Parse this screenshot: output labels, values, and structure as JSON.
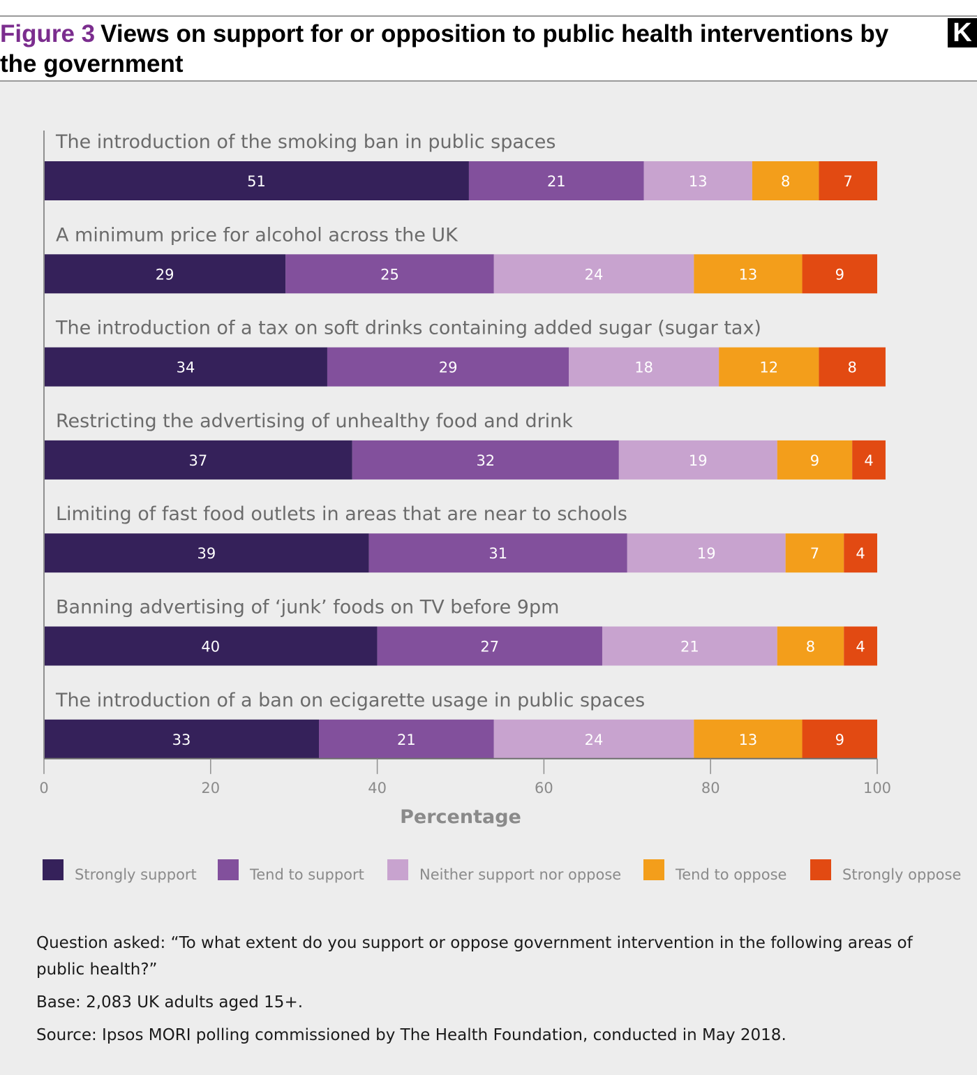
{
  "header": {
    "figure_label": "Figure 3",
    "title": "Views on support for or opposition to public health interventions by the government",
    "logo_text": "K"
  },
  "chart_data": {
    "type": "bar",
    "orientation": "horizontal",
    "stacked": true,
    "categories": [
      "The introduction of the smoking ban in public spaces",
      "A minimum price for alcohol across the UK",
      "The introduction of a tax on soft drinks containing added sugar (sugar tax)",
      "Restricting the advertising of unhealthy food and drink",
      "Limiting of fast food outlets in areas that are near to schools",
      "Banning advertising of ‘junk’ foods on TV before 9pm",
      "The introduction of a ban on ecigarette usage in public spaces"
    ],
    "series": [
      {
        "name": "Strongly support",
        "color": "#35215a",
        "values": [
          51,
          29,
          34,
          37,
          39,
          40,
          33
        ]
      },
      {
        "name": "Tend to support",
        "color": "#82509c",
        "values": [
          21,
          25,
          29,
          32,
          31,
          27,
          21
        ]
      },
      {
        "name": "Neither support nor oppose",
        "color": "#c8a3cf",
        "values": [
          13,
          24,
          18,
          19,
          19,
          21,
          24
        ]
      },
      {
        "name": "Tend to oppose",
        "color": "#f39e1b",
        "values": [
          8,
          13,
          12,
          9,
          7,
          8,
          13
        ]
      },
      {
        "name": "Strongly oppose",
        "color": "#e24a12",
        "values": [
          7,
          9,
          8,
          4,
          4,
          4,
          9
        ]
      }
    ],
    "xlabel": "Percentage",
    "xlim": [
      0,
      100
    ],
    "xticks": [
      0,
      20,
      40,
      60,
      80,
      100
    ],
    "legend_position": "bottom",
    "grid": false
  },
  "notes": {
    "question": "Question asked: “To what extent do you support or oppose government intervention in the following areas of public health?”",
    "base": "Base: 2,083 UK adults aged 15+.",
    "source": "Source: Ipsos MORI polling commissioned by The Health Foundation, conducted in May 2018."
  }
}
